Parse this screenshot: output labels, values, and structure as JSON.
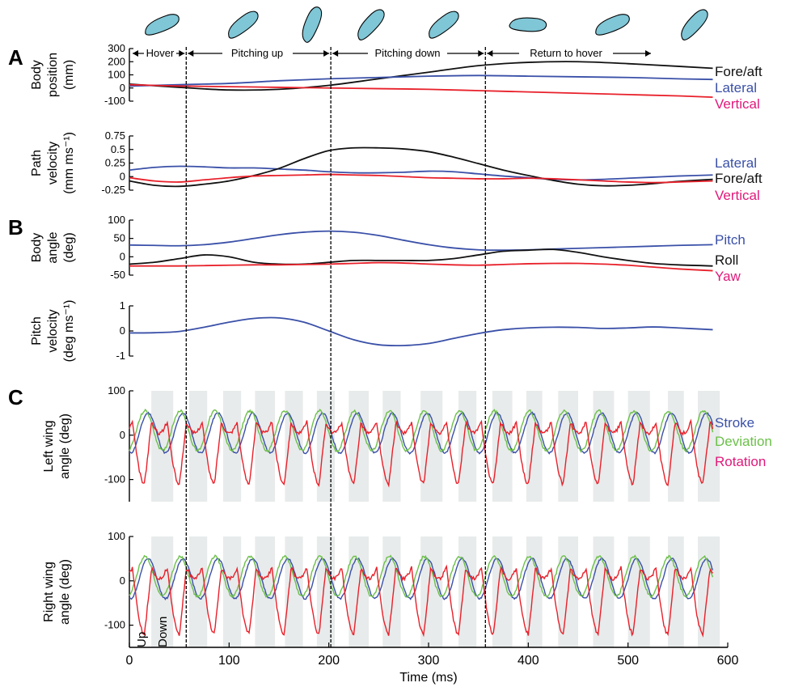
{
  "panel_labels": [
    "A",
    "B",
    "C"
  ],
  "phases": [
    {
      "label": "Hover",
      "start": 0,
      "end": 57
    },
    {
      "label": "Pitching up",
      "start": 57,
      "end": 202
    },
    {
      "label": "Pitching down",
      "start": 202,
      "end": 357
    },
    {
      "label": "Return to hover",
      "start": 357,
      "end": 530
    }
  ],
  "phase_boundaries": [
    57,
    202,
    357
  ],
  "colors": {
    "black": "#111111",
    "blue": "#3a50a8",
    "red": "#e8202a",
    "green": "#6cc04a",
    "pink": "#e0197a",
    "band": "#e8ebeb",
    "fly": "#7fc6d6"
  },
  "time_axis": {
    "label": "Time (ms)",
    "ticks": [
      0,
      100,
      200,
      300,
      400,
      500,
      600
    ]
  },
  "stroke_bands": [
    [
      22,
      44
    ],
    [
      60,
      78
    ],
    [
      94,
      112
    ],
    [
      126,
      146
    ],
    [
      156,
      174
    ],
    [
      188,
      206
    ],
    [
      220,
      240
    ],
    [
      254,
      272
    ],
    [
      292,
      314
    ],
    [
      330,
      348
    ],
    [
      364,
      384
    ],
    [
      398,
      414
    ],
    [
      430,
      450
    ],
    [
      465,
      486
    ],
    [
      500,
      522
    ],
    [
      540,
      556
    ],
    [
      570,
      592
    ]
  ],
  "strip_labels": {
    "up": "Up",
    "down": "Down"
  },
  "chart_data": [
    {
      "type": "line",
      "ylabel": [
        "Body",
        "position",
        "(mm)"
      ],
      "ylim": [
        -100,
        300
      ],
      "yticks": [
        -100,
        0,
        100,
        200,
        300
      ],
      "x": [
        0,
        50,
        100,
        150,
        200,
        250,
        300,
        350,
        400,
        450,
        500,
        550,
        585
      ],
      "series": [
        {
          "name": "Fore/aft",
          "color": "#111111",
          "values": [
            30,
            5,
            -15,
            -10,
            20,
            70,
            120,
            170,
            195,
            200,
            185,
            165,
            150
          ]
        },
        {
          "name": "Lateral",
          "color": "#3a50a8",
          "values": [
            15,
            25,
            35,
            55,
            70,
            80,
            90,
            95,
            90,
            85,
            80,
            70,
            65
          ]
        },
        {
          "name": "Vertical",
          "color": "#e8202a",
          "values": [
            25,
            15,
            10,
            5,
            0,
            -5,
            -10,
            -20,
            -30,
            -40,
            -50,
            -60,
            -70
          ]
        }
      ]
    },
    {
      "type": "line",
      "ylabel": [
        "Path",
        "velocity",
        "(mm ms⁻¹)"
      ],
      "ylim": [
        -0.25,
        0.75
      ],
      "yticks": [
        -0.25,
        0,
        0.25,
        0.5,
        0.75
      ],
      "x": [
        0,
        25,
        50,
        75,
        100,
        125,
        150,
        175,
        200,
        225,
        250,
        275,
        300,
        325,
        350,
        375,
        400,
        425,
        450,
        475,
        500,
        525,
        550,
        585
      ],
      "series": [
        {
          "name": "Lateral",
          "color": "#3a50a8",
          "values": [
            0.12,
            0.17,
            0.19,
            0.18,
            0.16,
            0.16,
            0.14,
            0.12,
            0.09,
            0.07,
            0.07,
            0.08,
            0.1,
            0.09,
            0.05,
            0.01,
            -0.02,
            -0.05,
            -0.06,
            -0.05,
            -0.03,
            -0.01,
            0.01,
            0.03
          ]
        },
        {
          "name": "Fore/aft",
          "color": "#111111",
          "values": [
            -0.08,
            -0.16,
            -0.18,
            -0.14,
            -0.08,
            0.02,
            0.15,
            0.33,
            0.48,
            0.53,
            0.53,
            0.51,
            0.46,
            0.36,
            0.24,
            0.12,
            0.02,
            -0.07,
            -0.14,
            -0.17,
            -0.16,
            -0.13,
            -0.09,
            -0.05
          ]
        },
        {
          "name": "Vertical",
          "color": "#e8202a",
          "values": [
            -0.02,
            -0.08,
            -0.1,
            -0.06,
            -0.02,
            0.01,
            0.02,
            0.03,
            0.04,
            0.03,
            0.02,
            0.0,
            -0.02,
            -0.03,
            -0.04,
            -0.04,
            -0.03,
            -0.04,
            -0.06,
            -0.08,
            -0.1,
            -0.11,
            -0.1,
            -0.08
          ]
        }
      ]
    },
    {
      "type": "line",
      "ylabel": [
        "Body",
        "angle",
        "(deg)"
      ],
      "ylim": [
        -50,
        100
      ],
      "yticks": [
        -50,
        0,
        50,
        100
      ],
      "x": [
        0,
        25,
        50,
        75,
        100,
        125,
        150,
        175,
        200,
        225,
        250,
        275,
        300,
        325,
        350,
        375,
        400,
        425,
        450,
        475,
        500,
        525,
        550,
        585
      ],
      "series": [
        {
          "name": "Pitch",
          "color": "#3a50a8",
          "values": [
            32,
            31,
            30,
            33,
            40,
            50,
            60,
            67,
            70,
            67,
            58,
            45,
            33,
            24,
            19,
            18,
            19,
            21,
            23,
            25,
            27,
            29,
            31,
            33
          ]
        },
        {
          "name": "Roll",
          "color": "#111111",
          "values": [
            -20,
            -15,
            -5,
            5,
            0,
            -15,
            -20,
            -20,
            -15,
            -10,
            -10,
            -10,
            -10,
            -5,
            5,
            15,
            18,
            20,
            12,
            0,
            -10,
            -18,
            -22,
            -25
          ]
        },
        {
          "name": "Yaw",
          "color": "#e8202a",
          "values": [
            -25,
            -25,
            -25,
            -24,
            -23,
            -22,
            -22,
            -21,
            -20,
            -18,
            -16,
            -17,
            -20,
            -22,
            -23,
            -21,
            -19,
            -18,
            -18,
            -20,
            -23,
            -28,
            -33,
            -38
          ]
        }
      ]
    },
    {
      "type": "line",
      "ylabel": [
        "Pitch",
        "velocity",
        "(deg ms⁻¹)"
      ],
      "ylim": [
        -1,
        1
      ],
      "yticks": [
        -1,
        0,
        1
      ],
      "x": [
        0,
        25,
        50,
        75,
        100,
        125,
        150,
        175,
        200,
        225,
        250,
        275,
        300,
        325,
        350,
        375,
        400,
        425,
        450,
        475,
        500,
        525,
        550,
        585
      ],
      "series": [
        {
          "name": "Pitch",
          "color": "#3a50a8",
          "values": [
            -0.08,
            -0.07,
            -0.02,
            0.15,
            0.35,
            0.5,
            0.52,
            0.35,
            0.0,
            -0.35,
            -0.55,
            -0.58,
            -0.5,
            -0.3,
            -0.1,
            0.05,
            0.12,
            0.15,
            0.14,
            0.1,
            0.12,
            0.16,
            0.12,
            0.05
          ]
        }
      ]
    },
    {
      "type": "line",
      "ylabel": [
        "Left wing",
        "angle (deg)"
      ],
      "ylim": [
        -150,
        100
      ],
      "yticks": [
        -100,
        0,
        100
      ],
      "series": [
        {
          "name": "Stroke",
          "color": "#3a50a8",
          "amplitude": 45,
          "center": 5
        },
        {
          "name": "Deviation",
          "color": "#6cc04a",
          "amplitude": 45,
          "center": 10
        },
        {
          "name": "Rotation",
          "color": "#e8202a",
          "min": -110,
          "max": 30
        }
      ]
    },
    {
      "type": "line",
      "ylabel": [
        "Right wing",
        "angle (deg)"
      ],
      "ylim": [
        -150,
        100
      ],
      "yticks": [
        -100,
        0,
        100
      ],
      "series": [
        {
          "name": "Stroke",
          "color": "#3a50a8",
          "amplitude": 45,
          "center": 5
        },
        {
          "name": "Deviation",
          "color": "#6cc04a",
          "amplitude": 45,
          "center": 10
        },
        {
          "name": "Rotation",
          "color": "#e8202a",
          "min": -120,
          "max": 30
        }
      ]
    }
  ],
  "wing_legend": {
    "stroke": "Stroke",
    "deviation": "Deviation",
    "rotation": "Rotation"
  }
}
